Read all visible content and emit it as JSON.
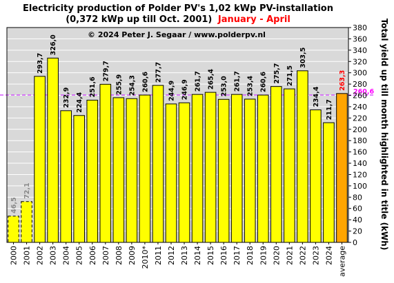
{
  "title": {
    "line1": "Electricity production  of Polder  PV's  1,02 kWp PV-installation",
    "line2_black": "(0,372 kWp up till Oct. 2001)",
    "line2_red": "January - April"
  },
  "credit": "© 2024 Peter J. Segaar / www.polderpv.nl",
  "colors": {
    "plot_bg": "#d9d9d9",
    "bar": "#ffff00",
    "bar_average": "#ffa500",
    "reference_line": "#cc33ff",
    "reference_label": "#ff00ff",
    "partial_label": "#888888",
    "average_label": "#ff0000",
    "grid": "#ffffff"
  },
  "chart_data": {
    "type": "bar",
    "title": "Electricity production  of Polder  PV's  1,02 kWp PV-installation (0,372 kWp up till Oct. 2001) January - April",
    "categories": [
      "2000",
      "2001",
      "2002",
      "2003",
      "2004",
      "2005",
      "2006",
      "2007",
      "2008",
      "2009",
      "2010*",
      "2011",
      "2012",
      "2013",
      "2014",
      "2015",
      "2016",
      "2017",
      "2018",
      "2019",
      "2020",
      "2021",
      "2022",
      "2023",
      "2024",
      "average"
    ],
    "values": [
      46.5,
      72.1,
      293.7,
      326.0,
      232.9,
      224.4,
      251.6,
      279.7,
      255.9,
      254.3,
      260.6,
      277.7,
      244.9,
      246.9,
      261.7,
      265.4,
      253.0,
      261.7,
      253.4,
      260.6,
      275.7,
      271.5,
      303.5,
      234.4,
      211.7,
      263.3
    ],
    "value_labels": [
      "46,5",
      "72,1",
      "293,7",
      "326,0",
      "232,9",
      "224,4",
      "251,6",
      "279,7",
      "255,9",
      "254,3",
      "260,6",
      "277,7",
      "244,9",
      "246,9",
      "261,7",
      "265,4",
      "253,0",
      "261,7",
      "253,4",
      "260,6",
      "275,7",
      "271,5",
      "303,5",
      "234,4",
      "211,7",
      "263,3"
    ],
    "partial_years": [
      "2000",
      "2001"
    ],
    "highlight_category": "average",
    "reference_line": {
      "value": 260.6,
      "label": "260,6"
    },
    "ylabel": "Total yield up till month highlighted in title (kWh)",
    "xlabel": "",
    "ylim": [
      0,
      380
    ],
    "yticks": [
      0,
      20,
      40,
      60,
      80,
      100,
      120,
      140,
      160,
      180,
      200,
      220,
      240,
      260,
      280,
      300,
      320,
      340,
      360,
      380
    ],
    "y_axis_side": "right",
    "grid": true
  }
}
